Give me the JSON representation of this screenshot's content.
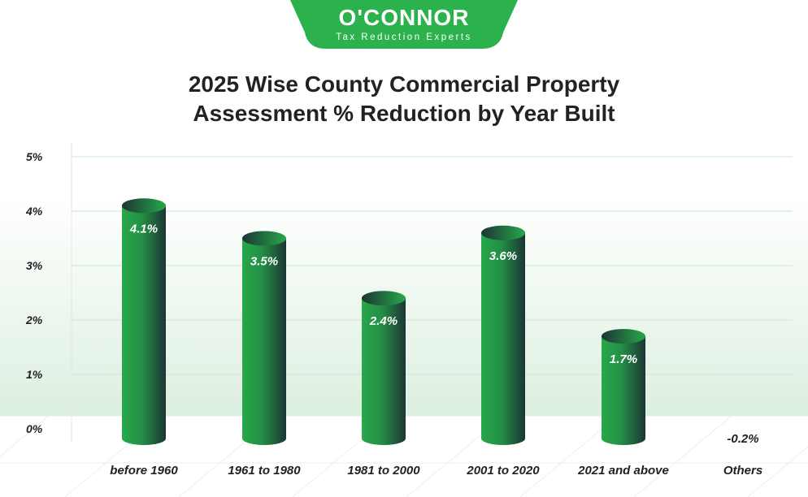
{
  "logo": {
    "name": "O'CONNOR",
    "tagline": "Tax Reduction Experts"
  },
  "colors": {
    "brand": "#2bb24c",
    "bar_light": "#27a84a",
    "bar_dark": "#1c3535",
    "grid": "#c8e8cf"
  },
  "chart_data": {
    "type": "bar",
    "title_line1": "2025 Wise County Commercial Property",
    "title_line2": "Assessment % Reduction by Year Built",
    "categories": [
      "before 1960",
      "1961 to 1980",
      "1981 to 2000",
      "2001 to 2020",
      "2021 and above",
      "Others"
    ],
    "values": [
      4.1,
      3.5,
      2.4,
      3.6,
      1.7,
      -0.2
    ],
    "data_labels": [
      "4.1%",
      "3.5%",
      "2.4%",
      "3.6%",
      "1.7%",
      "-0.2%"
    ],
    "ylim": [
      0,
      5
    ],
    "yticks": [
      "0%",
      "1%",
      "2%",
      "3%",
      "4%",
      "5%"
    ],
    "grid": true
  }
}
